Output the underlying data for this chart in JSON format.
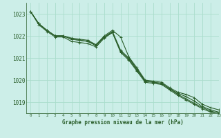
{
  "bg_color": "#cceee8",
  "grid_color": "#aaddcc",
  "line_color": "#2a5e2a",
  "xlabel": "Graphe pression niveau de la mer (hPa)",
  "ylim": [
    1018.5,
    1023.5
  ],
  "xlim": [
    -0.5,
    23
  ],
  "yticks": [
    1019,
    1020,
    1021,
    1022,
    1023
  ],
  "xticks": [
    0,
    1,
    2,
    3,
    4,
    5,
    6,
    7,
    8,
    9,
    10,
    11,
    12,
    13,
    14,
    15,
    16,
    17,
    18,
    19,
    20,
    21,
    22,
    23
  ],
  "series": [
    [
      1023.1,
      1022.55,
      1022.25,
      1022.0,
      1022.0,
      1021.9,
      1021.85,
      1021.8,
      1021.6,
      1022.0,
      1022.25,
      1021.95,
      1021.05,
      1020.55,
      1020.0,
      1019.95,
      1019.9,
      1019.65,
      1019.45,
      1019.35,
      1019.2,
      1018.9,
      1018.75,
      1018.65
    ],
    [
      1023.1,
      1022.55,
      1022.25,
      1022.0,
      1022.0,
      1021.85,
      1021.8,
      1021.75,
      1021.55,
      1021.95,
      1022.2,
      1021.35,
      1021.0,
      1020.5,
      1019.95,
      1019.9,
      1019.85,
      1019.6,
      1019.4,
      1019.25,
      1019.05,
      1018.8,
      1018.65,
      1018.55
    ],
    [
      1023.1,
      1022.55,
      1022.25,
      1022.0,
      1022.0,
      1021.85,
      1021.8,
      1021.75,
      1021.6,
      1021.95,
      1022.15,
      1021.3,
      1020.95,
      1020.45,
      1019.95,
      1019.9,
      1019.85,
      1019.6,
      1019.35,
      1019.15,
      1018.95,
      1018.75,
      1018.6,
      1018.5
    ],
    [
      1023.1,
      1022.5,
      1022.2,
      1021.95,
      1021.95,
      1021.75,
      1021.7,
      1021.65,
      1021.5,
      1021.9,
      1022.15,
      1021.25,
      1020.9,
      1020.4,
      1019.9,
      1019.85,
      1019.8,
      1019.55,
      1019.3,
      1019.1,
      1018.9,
      1018.7,
      1018.55,
      1018.45
    ]
  ]
}
